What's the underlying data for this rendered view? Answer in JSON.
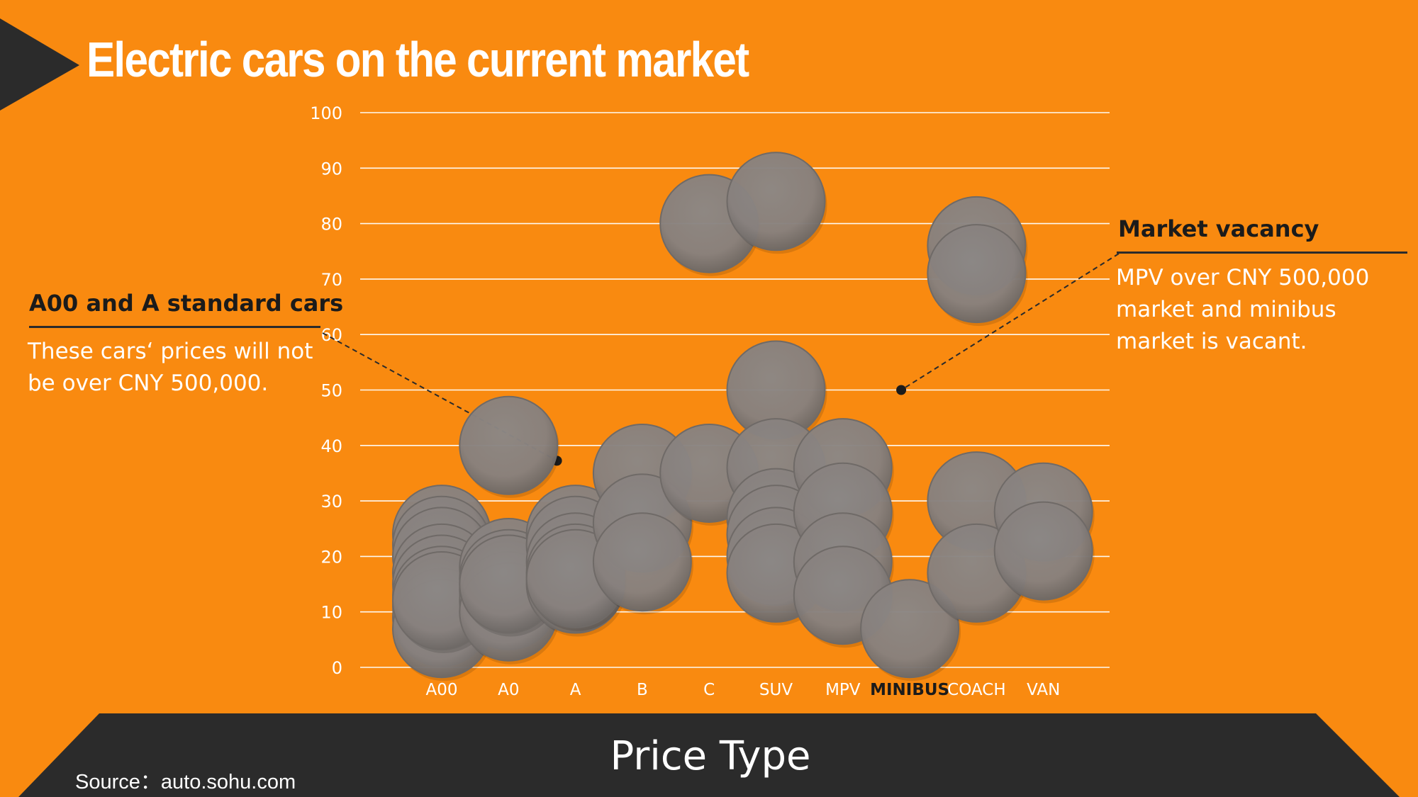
{
  "page": {
    "title": "Electric cars on the current market",
    "source": "Source：auto.sohu.com"
  },
  "colors": {
    "background": "#F98A10",
    "dark": "#2B2B2B",
    "bubble": "#8A8582",
    "bubble_edge": "#6F6A67",
    "gridline": "#FFFFFF",
    "highlight_category": "#1B1B1B"
  },
  "annotations": {
    "left": {
      "title": "A00 and A standard cars",
      "body": "These cars‘ prices will not be over CNY 500,000."
    },
    "right": {
      "title": "Market vacancy",
      "body": "MPV over CNY 500,000 market and minibus market is vacant."
    }
  },
  "chart_data": {
    "type": "scatter",
    "title": "Electric cars on the current market",
    "xlabel": "Price Type",
    "ylabel": "",
    "categories": [
      "A00",
      "A0",
      "A",
      "B",
      "C",
      "SUV",
      "MPV",
      "MINIBUS",
      "COACH",
      "VAN"
    ],
    "highlighted_category": "MINIBUS",
    "ylim": [
      0,
      100
    ],
    "yticks": [
      0,
      10,
      20,
      30,
      40,
      50,
      60,
      70,
      80,
      90,
      100
    ],
    "grid": true,
    "marker": "bubble",
    "points": [
      {
        "x": "A00",
        "y": 24
      },
      {
        "x": "A00",
        "y": 22
      },
      {
        "x": "A00",
        "y": 20
      },
      {
        "x": "A00",
        "y": 17
      },
      {
        "x": "A00",
        "y": 15
      },
      {
        "x": "A00",
        "y": 13
      },
      {
        "x": "A00",
        "y": 11
      },
      {
        "x": "A00",
        "y": 9
      },
      {
        "x": "A00",
        "y": 7
      },
      {
        "x": "A00",
        "y": 12
      },
      {
        "x": "A0",
        "y": 40
      },
      {
        "x": "A0",
        "y": 18
      },
      {
        "x": "A0",
        "y": 16
      },
      {
        "x": "A0",
        "y": 14
      },
      {
        "x": "A0",
        "y": 12
      },
      {
        "x": "A0",
        "y": 10
      },
      {
        "x": "A0",
        "y": 15
      },
      {
        "x": "A",
        "y": 24
      },
      {
        "x": "A",
        "y": 22
      },
      {
        "x": "A",
        "y": 19
      },
      {
        "x": "A",
        "y": 17
      },
      {
        "x": "A",
        "y": 15
      },
      {
        "x": "A",
        "y": 16
      },
      {
        "x": "B",
        "y": 35
      },
      {
        "x": "B",
        "y": 26
      },
      {
        "x": "B",
        "y": 19
      },
      {
        "x": "C",
        "y": 80
      },
      {
        "x": "C",
        "y": 35
      },
      {
        "x": "SUV",
        "y": 84
      },
      {
        "x": "SUV",
        "y": 50
      },
      {
        "x": "SUV",
        "y": 36
      },
      {
        "x": "SUV",
        "y": 27
      },
      {
        "x": "SUV",
        "y": 24
      },
      {
        "x": "SUV",
        "y": 20
      },
      {
        "x": "SUV",
        "y": 17
      },
      {
        "x": "MPV",
        "y": 36
      },
      {
        "x": "MPV",
        "y": 28
      },
      {
        "x": "MPV",
        "y": 19
      },
      {
        "x": "MPV",
        "y": 13
      },
      {
        "x": "MINIBUS",
        "y": 7
      },
      {
        "x": "COACH",
        "y": 76
      },
      {
        "x": "COACH",
        "y": 71
      },
      {
        "x": "COACH",
        "y": 30
      },
      {
        "x": "COACH",
        "y": 17
      },
      {
        "x": "VAN",
        "y": 28
      },
      {
        "x": "VAN",
        "y": 21
      }
    ],
    "annotation_points": [
      {
        "x": "A",
        "y": 37.5
      },
      {
        "x": "MINIBUS",
        "y": 50
      }
    ]
  }
}
